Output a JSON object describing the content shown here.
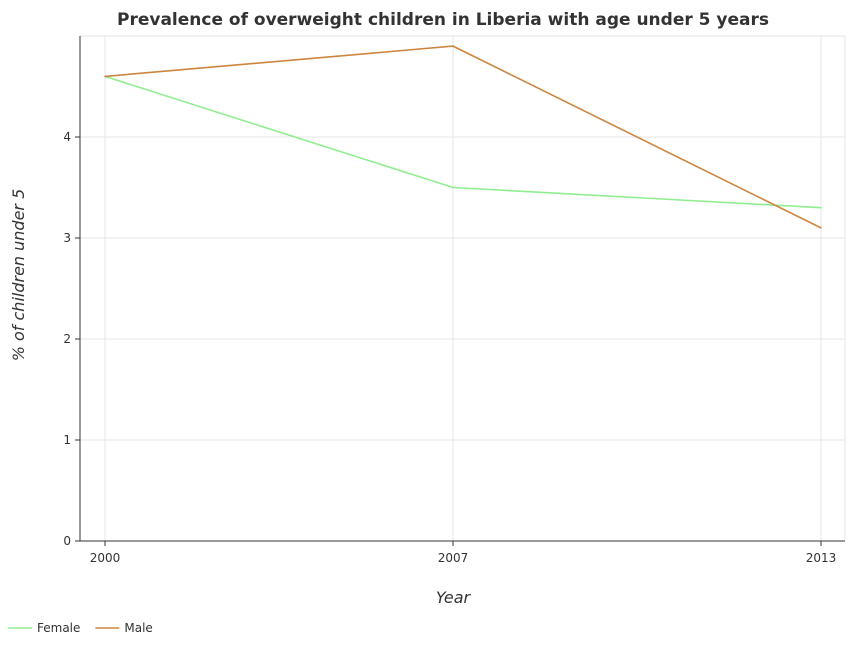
{
  "chart_data": {
    "type": "line",
    "title": "Prevalence of overweight children in Liberia with age under 5 years",
    "xlabel": "Year",
    "ylabel": "% of children under 5",
    "categories": [
      "2000",
      "2007",
      "2013"
    ],
    "yticks": [
      0,
      1,
      2,
      3,
      4
    ],
    "ylim": [
      0,
      5
    ],
    "grid": true,
    "legend_position": "bottom-left",
    "series": [
      {
        "name": "Female",
        "color": "#90ee90",
        "values": [
          4.6,
          3.5,
          3.3
        ]
      },
      {
        "name": "Male",
        "color": "#cd853f",
        "values": [
          4.6,
          4.9,
          3.1
        ]
      }
    ]
  }
}
